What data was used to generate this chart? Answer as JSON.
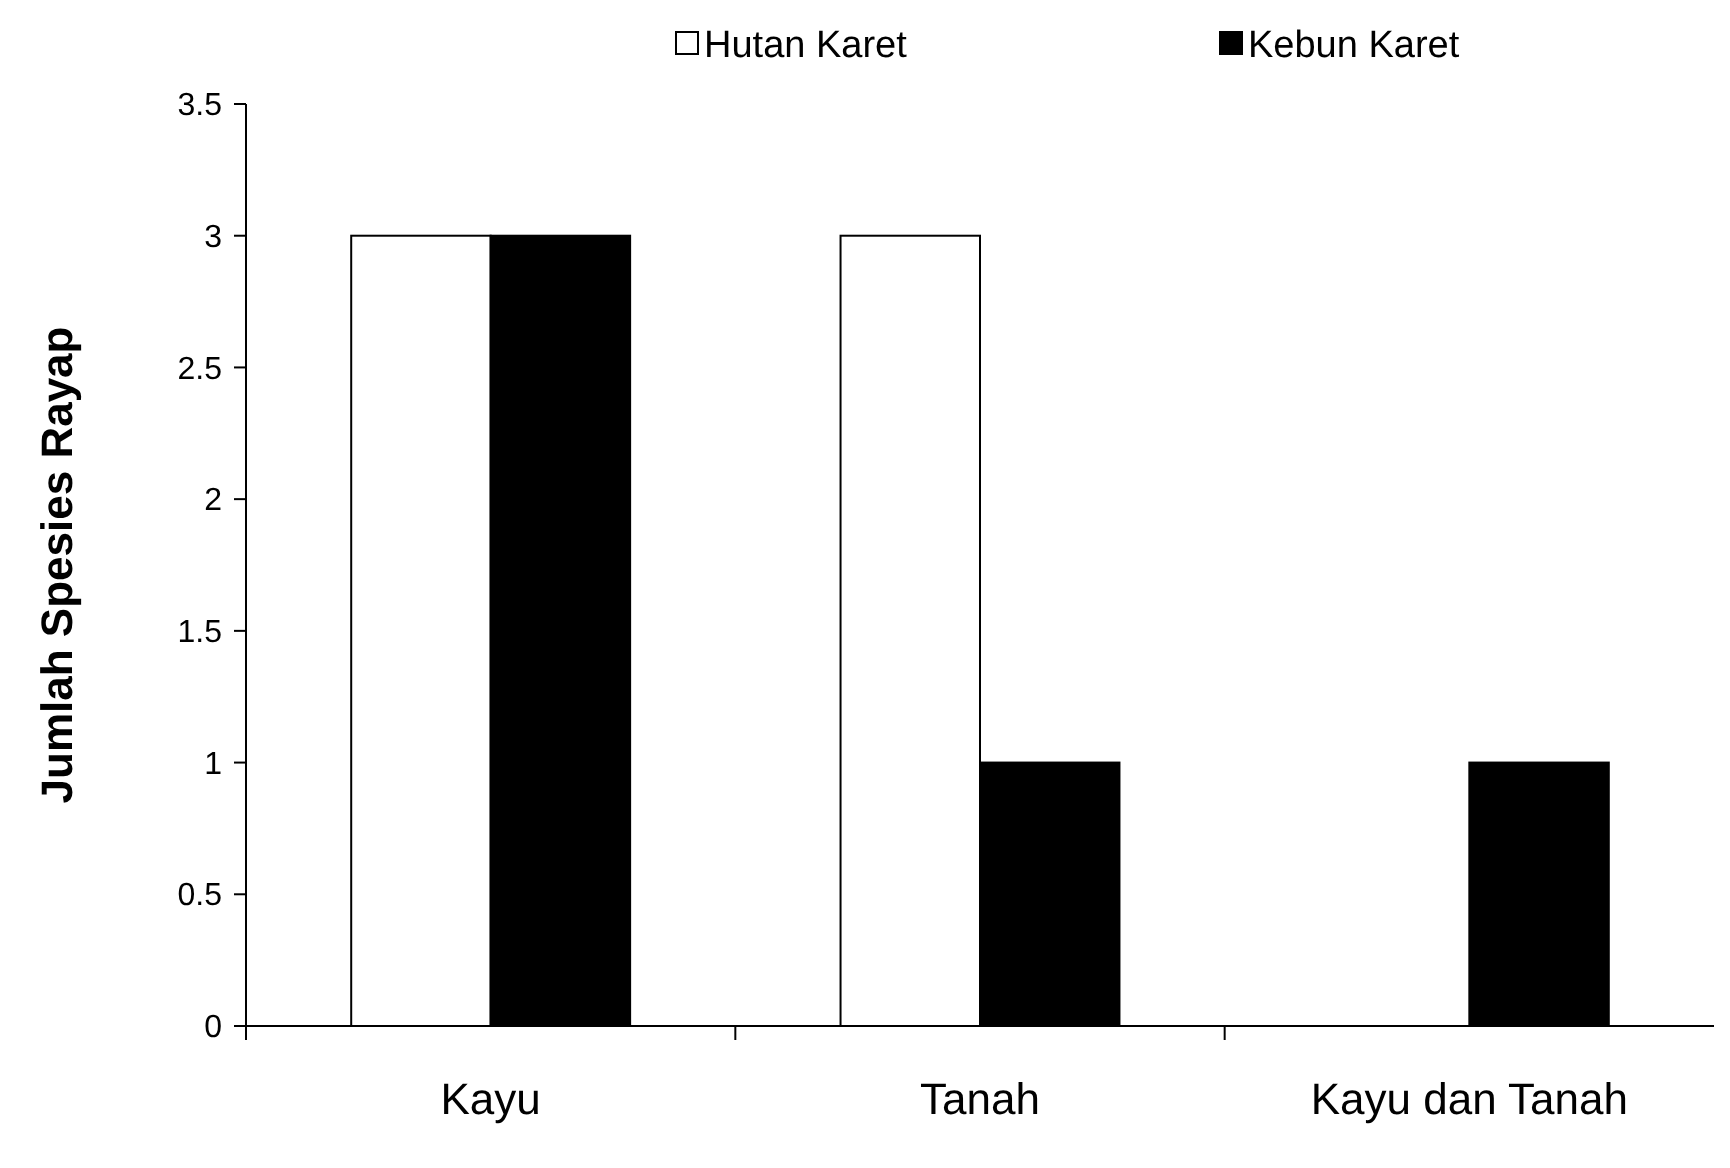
{
  "chart_data": {
    "type": "bar",
    "ylabel": "Jumlah Spesies Rayap",
    "categories": [
      "Kayu",
      "Tanah",
      "Kayu dan Tanah"
    ],
    "series": [
      {
        "name": "Hutan Karet",
        "color": "#ffffff",
        "values": [
          3,
          3,
          0
        ]
      },
      {
        "name": "Kebun Karet",
        "color": "#000000",
        "values": [
          3,
          1,
          1
        ]
      }
    ],
    "ylim": [
      0,
      3.5
    ],
    "yticks": [
      0,
      0.5,
      1,
      1.5,
      2,
      2.5,
      3,
      3.5
    ],
    "grid": false,
    "legend": "top"
  }
}
